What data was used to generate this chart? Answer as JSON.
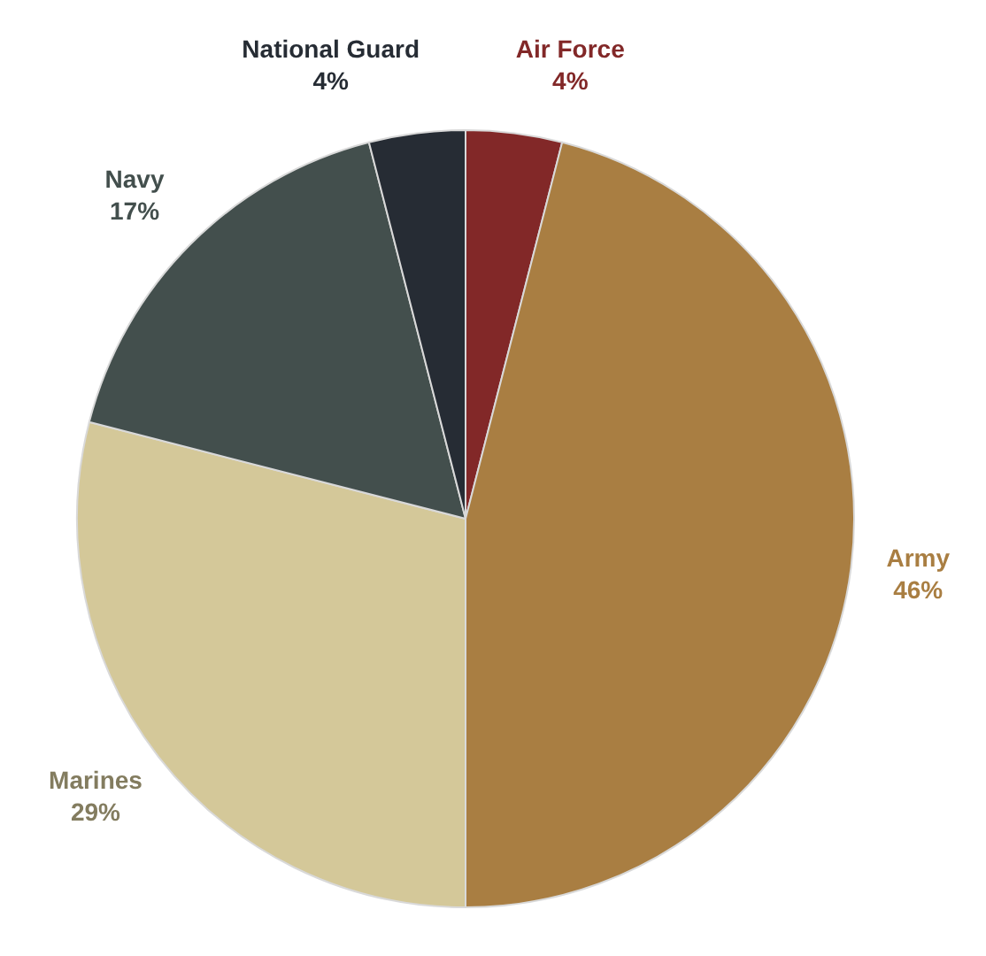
{
  "chart_data": {
    "type": "pie",
    "categories": [
      "Air Force",
      "Army",
      "Marines",
      "Navy",
      "National Guard"
    ],
    "values": [
      4,
      46,
      29,
      17,
      4
    ],
    "colors": [
      "#822828",
      "#a97e42",
      "#d4c899",
      "#434f4d",
      "#262c34"
    ],
    "value_labels": [
      "4%",
      "46%",
      "29%",
      "17%",
      "4%"
    ]
  }
}
